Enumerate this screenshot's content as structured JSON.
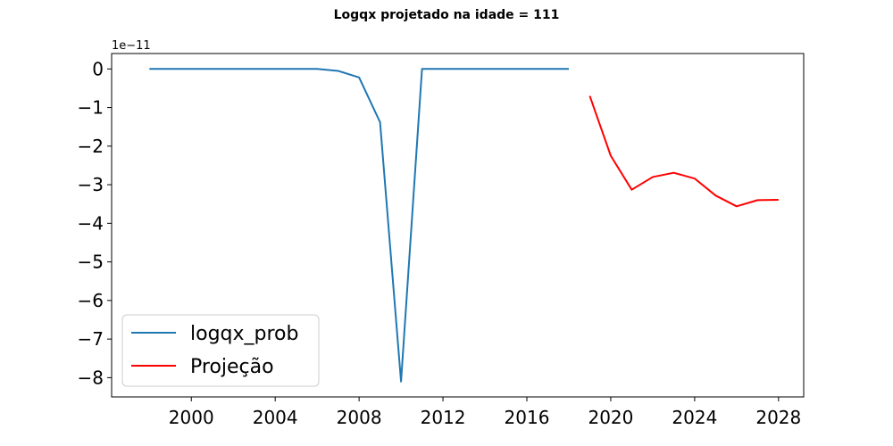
{
  "chart_data": {
    "type": "line",
    "title": "Logqx projetado na idade = 111",
    "xlabel": "",
    "ylabel": "",
    "y_offset_label": "1e−11",
    "x_ticks": [
      "2000",
      "2004",
      "2008",
      "2012",
      "2016",
      "2020",
      "2024",
      "2028"
    ],
    "y_ticks": [
      "0",
      "−1",
      "−2",
      "−3",
      "−4",
      "−5",
      "−6",
      "−7",
      "−8"
    ],
    "xlim": [
      1996.2,
      2029.2
    ],
    "ylim": [
      -8.5,
      0.4
    ],
    "grid": false,
    "legend_position": "lower-left",
    "series": [
      {
        "name": "logqx_prob",
        "color": "#1f77b4",
        "x": [
          1998,
          1999,
          2000,
          2001,
          2002,
          2003,
          2004,
          2005,
          2006,
          2007,
          2008,
          2009,
          2010,
          2011,
          2012,
          2013,
          2014,
          2015,
          2016,
          2017,
          2018
        ],
        "y": [
          0,
          0,
          0,
          0,
          0,
          0,
          0,
          0,
          0,
          -0.05,
          -0.22,
          -1.38,
          -8.1,
          0,
          0,
          0,
          0,
          0,
          0,
          0,
          0
        ]
      },
      {
        "name": "Projeção",
        "color": "#ff0000",
        "x": [
          2019,
          2020,
          2021,
          2022,
          2023,
          2024,
          2025,
          2026,
          2027,
          2028
        ],
        "y": [
          -0.7,
          -2.25,
          -3.13,
          -2.8,
          -2.69,
          -2.84,
          -3.28,
          -3.56,
          -3.4,
          -3.39
        ]
      }
    ]
  }
}
